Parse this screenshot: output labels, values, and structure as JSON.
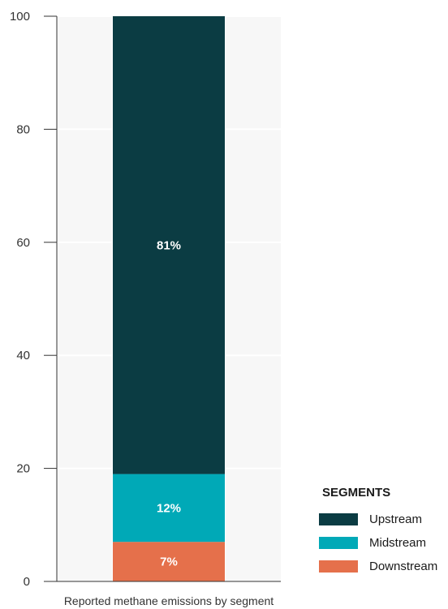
{
  "chart_data": {
    "type": "bar",
    "stacked": true,
    "categories": [
      "Reported methane emissions by segment"
    ],
    "series": [
      {
        "name": "Downstream",
        "values": [
          7
        ],
        "label": "7%",
        "color": "#e5704b"
      },
      {
        "name": "Midstream",
        "values": [
          12
        ],
        "label": "12%",
        "color": "#00a9b7"
      },
      {
        "name": "Upstream",
        "values": [
          81
        ],
        "label": "81%",
        "color": "#0b3c43"
      }
    ],
    "ylim": [
      0,
      100
    ],
    "yticks": [
      0,
      20,
      40,
      60,
      80,
      100
    ],
    "grid": true,
    "legend": {
      "title": "SEGMENTS",
      "position": "bottom-right",
      "order": [
        "Upstream",
        "Midstream",
        "Downstream"
      ]
    },
    "colors": {
      "plot_background": "#f7f7f7",
      "gridline": "#ffffff",
      "axis": "#333333"
    }
  }
}
